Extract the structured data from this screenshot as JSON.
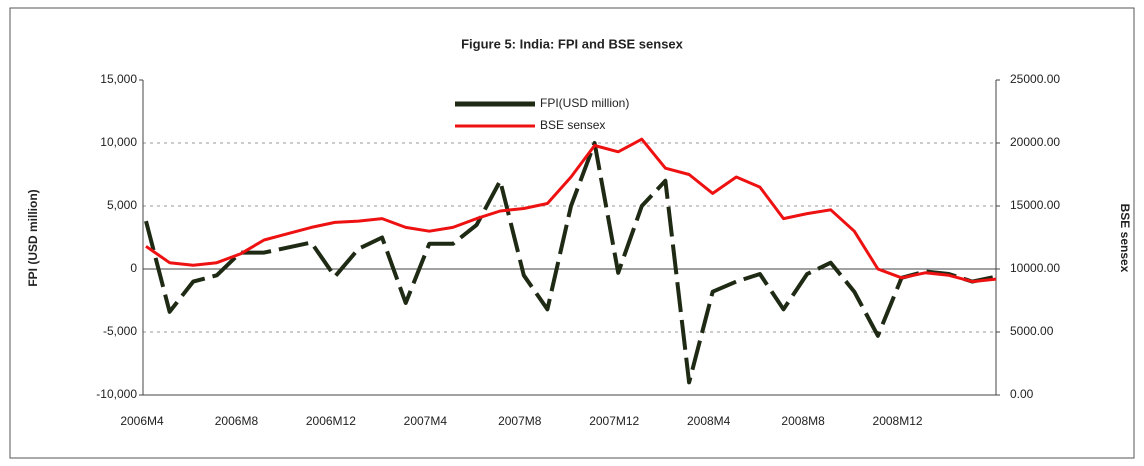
{
  "chart_data": {
    "type": "line",
    "title": "Figure 5: India: FPI and BSE sensex",
    "y_label": "FPI (USD million)",
    "y2_label": "BSE sensex",
    "categories": [
      "2006M4",
      null,
      null,
      null,
      "2006M8",
      null,
      null,
      null,
      "2006M12",
      null,
      null,
      null,
      "2007M4",
      null,
      null,
      null,
      "2007M8",
      null,
      null,
      null,
      "2007M12",
      null,
      null,
      null,
      "2008M4",
      null,
      null,
      null,
      "2008M8",
      null,
      null,
      null,
      "2008M12",
      null,
      null,
      null,
      null
    ],
    "series": [
      {
        "name": "FPI(USD million)",
        "color": "#1f2a14",
        "values": [
          3800,
          -3400,
          -1000,
          -500,
          1300,
          1300,
          1700,
          2100,
          -600,
          1600,
          2500,
          -2700,
          2000,
          2000,
          3500,
          7000,
          -500,
          -3200,
          5000,
          10000,
          -300,
          5000,
          7000,
          -9000,
          -1800,
          -1000,
          -400,
          -3200,
          -400,
          500,
          -1800,
          -5300,
          -700,
          -200,
          -400,
          -1000,
          -600
        ]
      },
      {
        "name": "BSE sensex",
        "color": "#ee1111",
        "axis": "y2",
        "values": [
          11800,
          10500,
          10300,
          10500,
          11200,
          12300,
          12800,
          13300,
          13700,
          13800,
          14000,
          13300,
          13000,
          13300,
          14000,
          14600,
          14800,
          15200,
          17300,
          19800,
          19300,
          20300,
          18000,
          17500,
          16000,
          17300,
          16500,
          14000,
          14400,
          14700,
          13000,
          10000,
          9300,
          9700,
          9500,
          9000,
          9200
        ]
      }
    ],
    "ylim": [
      -10000,
      15000
    ],
    "yticks": [
      {
        "value": -10000,
        "label": "-10,000"
      },
      {
        "value": -5000,
        "label": "-5,000"
      },
      0,
      {
        "value": 5000,
        "label": "5,000"
      },
      {
        "value": 10000,
        "label": "10,000"
      },
      {
        "value": 15000,
        "label": "15,000"
      }
    ],
    "y2lim": [
      0,
      25000
    ],
    "y2ticks": [
      {
        "value": 0,
        "label": "0.00"
      },
      {
        "value": 5000,
        "label": "5000.00"
      },
      {
        "value": 10000,
        "label": "10000.00"
      },
      {
        "value": 15000,
        "label": "15000.00"
      },
      {
        "value": 20000,
        "label": "20000.00"
      },
      {
        "value": 25000,
        "label": "25000.00"
      }
    ],
    "grid": true
  }
}
